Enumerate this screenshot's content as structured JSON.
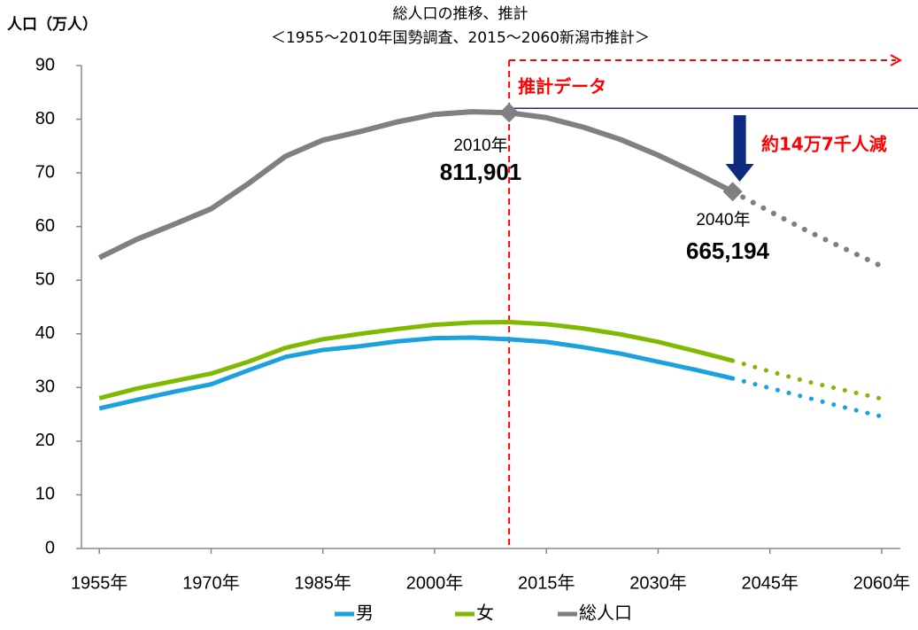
{
  "chart_data": {
    "type": "line",
    "title": "総人口の推移、推計",
    "subtitle": "＜1955～2010年国勢調査、2015～2060新潟市推計＞",
    "y_axis_label": "人口（万人）",
    "x": [
      1955,
      1960,
      1965,
      1970,
      1975,
      1980,
      1985,
      1990,
      1995,
      2000,
      2005,
      2010,
      2015,
      2020,
      2025,
      2030,
      2035,
      2040,
      2045,
      2050,
      2055,
      2060
    ],
    "xlim": [
      1952.6,
      2062.5
    ],
    "xticks": [
      {
        "value": 1955,
        "label": "1955年"
      },
      {
        "value": 1970,
        "label": "1970年"
      },
      {
        "value": 1985,
        "label": "1985年"
      },
      {
        "value": 2000,
        "label": "2000年"
      },
      {
        "value": 2015,
        "label": "2015年"
      },
      {
        "value": 2030,
        "label": "2030年"
      },
      {
        "value": 2045,
        "label": "2045年"
      },
      {
        "value": 2060,
        "label": "2060年"
      }
    ],
    "ylim": [
      0,
      90
    ],
    "yticks": [
      0,
      10,
      20,
      30,
      40,
      50,
      60,
      70,
      80,
      90
    ],
    "grid": false,
    "legend": "bottom",
    "dotted_from": 2040,
    "projection_start": 2010,
    "projection_label": "推計データ",
    "series": [
      {
        "name": "男",
        "color": "#1ba1dd",
        "values": [
          26.1,
          27.7,
          29.2,
          30.6,
          33.2,
          35.7,
          37.0,
          37.7,
          38.6,
          39.2,
          39.3,
          39.0,
          38.5,
          37.5,
          36.3,
          34.8,
          33.3,
          31.7,
          29.9,
          28.1,
          26.3,
          24.6
        ]
      },
      {
        "name": "女",
        "color": "#7fba00",
        "values": [
          28.0,
          29.8,
          31.2,
          32.6,
          34.8,
          37.4,
          39.0,
          40.0,
          40.9,
          41.7,
          42.1,
          42.2,
          41.8,
          41.0,
          39.9,
          38.5,
          36.8,
          35.0,
          33.0,
          31.1,
          29.5,
          27.9
        ]
      },
      {
        "name": "総人口",
        "color": "#808080",
        "values": [
          54.2,
          57.6,
          60.4,
          63.3,
          68.0,
          73.1,
          76.1,
          77.7,
          79.5,
          80.9,
          81.4,
          81.2,
          80.3,
          78.5,
          76.2,
          73.3,
          70.0,
          66.5,
          62.8,
          59.2,
          55.9,
          52.6
        ]
      }
    ],
    "annotations": [
      {
        "year": "2010年",
        "text": "811,901"
      },
      {
        "year": "2040年",
        "text": "665,194"
      },
      {
        "text": "約14万7千人減"
      }
    ]
  }
}
